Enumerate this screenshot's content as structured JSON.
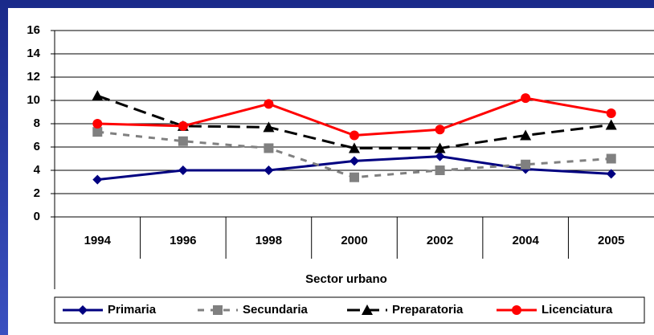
{
  "chart_data": {
    "type": "line",
    "x_label": "Sector urbano",
    "categories": [
      "1994",
      "1996",
      "1998",
      "2000",
      "2002",
      "2004",
      "2005"
    ],
    "series": [
      {
        "name": "Primaria",
        "color": "#000080",
        "marker": "diamond",
        "dash": "solid",
        "values": [
          3.2,
          4.0,
          4.0,
          4.8,
          5.2,
          4.1,
          3.7
        ]
      },
      {
        "name": "Secundaria",
        "color": "#808080",
        "marker": "square",
        "dash": "dashed",
        "values": [
          7.3,
          6.5,
          5.9,
          3.4,
          4.0,
          4.5,
          5.0
        ]
      },
      {
        "name": "Preparatoria",
        "color": "#000000",
        "marker": "triangle",
        "dash": "dashed",
        "values": [
          10.4,
          7.8,
          7.7,
          5.9,
          5.9,
          7.0,
          7.9
        ]
      },
      {
        "name": "Licenciatura",
        "color": "#ff0000",
        "marker": "circle",
        "dash": "solid",
        "values": [
          8.0,
          7.8,
          9.7,
          7.0,
          7.5,
          10.2,
          8.9
        ]
      }
    ],
    "ylim": [
      0,
      16
    ],
    "yticks": [
      0,
      2,
      4,
      6,
      8,
      10,
      12,
      14,
      16
    ],
    "grid": true,
    "legend": "bottom"
  }
}
